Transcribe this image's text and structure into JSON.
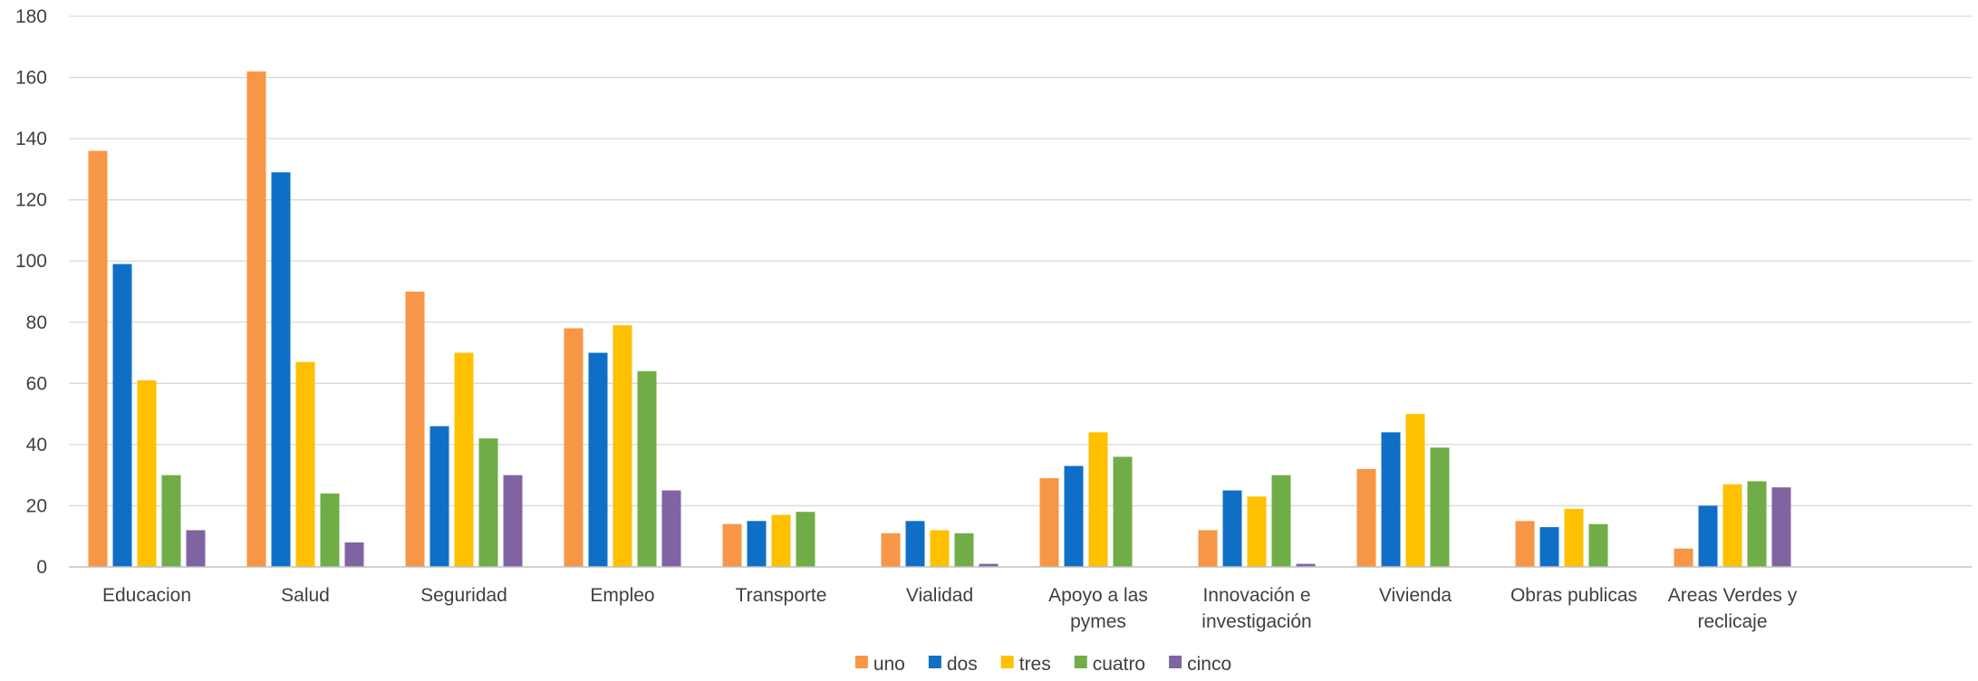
{
  "chart_data": {
    "type": "bar",
    "title": "",
    "xlabel": "",
    "ylabel": "",
    "ylim": [
      0,
      180
    ],
    "yticks": [
      0,
      20,
      40,
      60,
      80,
      100,
      120,
      140,
      160,
      180
    ],
    "grid": true,
    "legend_position": "bottom",
    "categories": [
      [
        "Educacion"
      ],
      [
        "Salud"
      ],
      [
        "Seguridad"
      ],
      [
        "Empleo"
      ],
      [
        "Transporte"
      ],
      [
        "Vialidad"
      ],
      [
        "Apoyo a las",
        "pymes"
      ],
      [
        "Innovación e",
        "investigación"
      ],
      [
        "Vivienda"
      ],
      [
        "Obras publicas"
      ],
      [
        "Areas Verdes y",
        "reclicaje"
      ]
    ],
    "series": [
      {
        "name": "uno",
        "color": "#F79646",
        "values": [
          136,
          162,
          90,
          78,
          14,
          11,
          29,
          12,
          32,
          15,
          6
        ]
      },
      {
        "name": "dos",
        "color": "#0F6FC6",
        "values": [
          99,
          129,
          46,
          70,
          15,
          15,
          33,
          25,
          44,
          13,
          20
        ]
      },
      {
        "name": "tres",
        "color": "#FFC000",
        "values": [
          61,
          67,
          70,
          79,
          17,
          12,
          44,
          23,
          50,
          19,
          27
        ]
      },
      {
        "name": "cuatro",
        "color": "#70AD47",
        "values": [
          30,
          24,
          42,
          64,
          18,
          11,
          36,
          30,
          39,
          14,
          28
        ]
      },
      {
        "name": "cinco",
        "color": "#8064A2",
        "values": [
          12,
          8,
          30,
          25,
          0,
          1,
          0,
          1,
          0,
          0,
          26
        ]
      }
    ]
  }
}
